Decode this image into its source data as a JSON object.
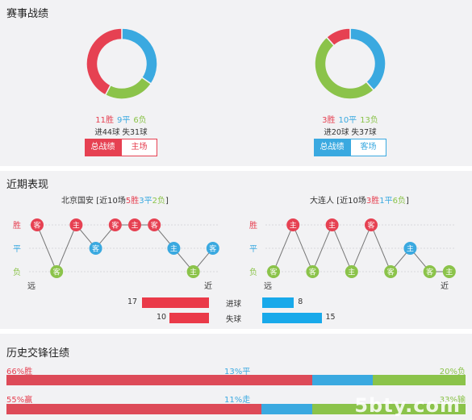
{
  "colors": {
    "win": "#e64152",
    "draw": "#3aa9e0",
    "loss": "#8bc34a",
    "panel": "#f2f2f4"
  },
  "record": {
    "title": "赛事战绩",
    "left": {
      "wins": 11,
      "draws": 9,
      "losses": 6,
      "win_text": "11胜",
      "draw_text": "9平",
      "loss_text": "6负",
      "goals_text": "进44球 失31球",
      "btn_all": "总战绩",
      "btn_venue": "主场"
    },
    "right": {
      "wins": 3,
      "draws": 10,
      "losses": 13,
      "win_text": "3胜",
      "draw_text": "10平",
      "loss_text": "13负",
      "goals_text": "进20球 失37球",
      "btn_all": "总战绩",
      "btn_venue": "客场"
    }
  },
  "recent": {
    "title": "近期表现",
    "left_header": {
      "team": "北京国安",
      "prefix": "[近10场",
      "w": "5胜",
      "d": "3平",
      "l": "2负",
      "suffix": "]"
    },
    "right_header": {
      "team": "大连人",
      "prefix": "[近10场",
      "w": "3胜",
      "d": "1平",
      "l": "6负",
      "suffix": "]"
    },
    "axis": {
      "win": "胜",
      "draw": "平",
      "loss": "负",
      "far": "远",
      "near": "近"
    },
    "left_results": [
      {
        "r": "W",
        "v": "客"
      },
      {
        "r": "L",
        "v": "客"
      },
      {
        "r": "W",
        "v": "主"
      },
      {
        "r": "D",
        "v": "客"
      },
      {
        "r": "W",
        "v": "客"
      },
      {
        "r": "W",
        "v": "主"
      },
      {
        "r": "W",
        "v": "客"
      },
      {
        "r": "D",
        "v": "主"
      },
      {
        "r": "L",
        "v": "主"
      },
      {
        "r": "D",
        "v": "客"
      }
    ],
    "right_results": [
      {
        "r": "L",
        "v": "客"
      },
      {
        "r": "W",
        "v": "主"
      },
      {
        "r": "L",
        "v": "客"
      },
      {
        "r": "W",
        "v": "主"
      },
      {
        "r": "L",
        "v": "主"
      },
      {
        "r": "W",
        "v": "客"
      },
      {
        "r": "L",
        "v": "客"
      },
      {
        "r": "D",
        "v": "主"
      },
      {
        "r": "L",
        "v": "客"
      },
      {
        "r": "L",
        "v": "主"
      }
    ],
    "goals_for_label": "进球",
    "goals_against_label": "失球",
    "left_for": 17,
    "left_against": 10,
    "right_for": 8,
    "right_against": 15
  },
  "h2h": {
    "title": "历史交锋往绩",
    "row1": {
      "win_text": "66%胜",
      "draw_text": "13%平",
      "loss_text": "20%负",
      "win": 66,
      "draw": 13,
      "loss": 20
    },
    "row2": {
      "win_text": "55%赢",
      "draw_text": "11%走",
      "loss_text": "33%输",
      "win": 55,
      "draw": 11,
      "loss": 33
    }
  },
  "watermark": "5bty.com"
}
